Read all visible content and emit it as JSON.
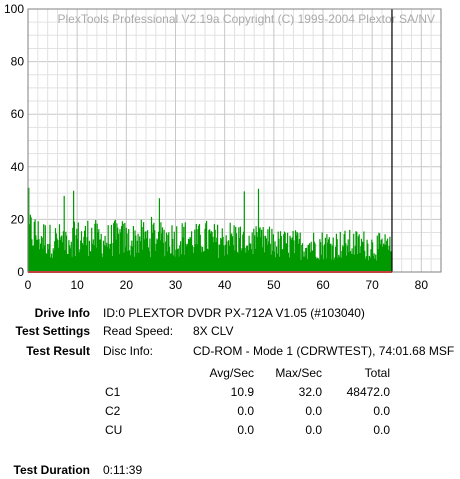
{
  "chart_data": {
    "type": "bar",
    "watermark": "PlexTools Professional V2.19a Copyright (C) 1999-2004 Plextor SA/NV",
    "xlim": [
      0,
      84
    ],
    "ylim": [
      0,
      100
    ],
    "x_ticks": [
      0,
      10,
      20,
      30,
      40,
      50,
      60,
      70,
      80
    ],
    "y_ticks": [
      0,
      20,
      40,
      60,
      80,
      100
    ],
    "grid": true,
    "marker_x": 74.03,
    "series": [
      {
        "name": "C1",
        "color": "#009900",
        "values_per_minute": [
          19,
          18,
          17,
          16,
          15,
          15,
          15,
          16,
          16,
          17,
          16,
          16,
          17,
          16,
          15,
          15,
          15,
          16,
          16,
          16,
          15,
          15,
          16,
          16,
          16,
          17,
          16,
          16,
          16,
          16,
          16,
          16,
          16,
          15,
          15,
          16,
          16,
          15,
          15,
          15,
          16,
          16,
          16,
          15,
          15,
          15,
          14,
          14,
          14,
          14,
          13,
          13,
          13,
          13,
          13,
          13,
          13,
          13,
          13,
          13,
          13,
          13,
          13,
          13,
          13,
          13,
          13,
          13,
          13,
          12,
          12,
          12,
          12,
          11
        ],
        "peak": 32.0
      }
    ],
    "baseline_color": "#ff0000"
  },
  "info": {
    "drive_info_label": "Drive Info",
    "drive_info_value": "ID:0 PLEXTOR DVDR PX-712A V1.05 (#103040)",
    "test_settings_label": "Test Settings",
    "read_speed_label": "Read Speed:",
    "read_speed_value": "8X CLV",
    "test_result_label": "Test Result",
    "disc_info_label": "Disc Info:",
    "disc_info_value": "CD-ROM - Mode 1 (CDRWTEST), 74:01.68 MSF",
    "col_avg": "Avg/Sec",
    "col_max": "Max/Sec",
    "col_total": "Total",
    "rows": [
      {
        "name": "C1",
        "avg": "10.9",
        "max": "32.0",
        "total": "48472.0"
      },
      {
        "name": "C2",
        "avg": "0.0",
        "max": "0.0",
        "total": "0.0"
      },
      {
        "name": "CU",
        "avg": "0.0",
        "max": "0.0",
        "total": "0.0"
      }
    ],
    "duration_label": "Test Duration",
    "duration_value": "0:11:39"
  }
}
